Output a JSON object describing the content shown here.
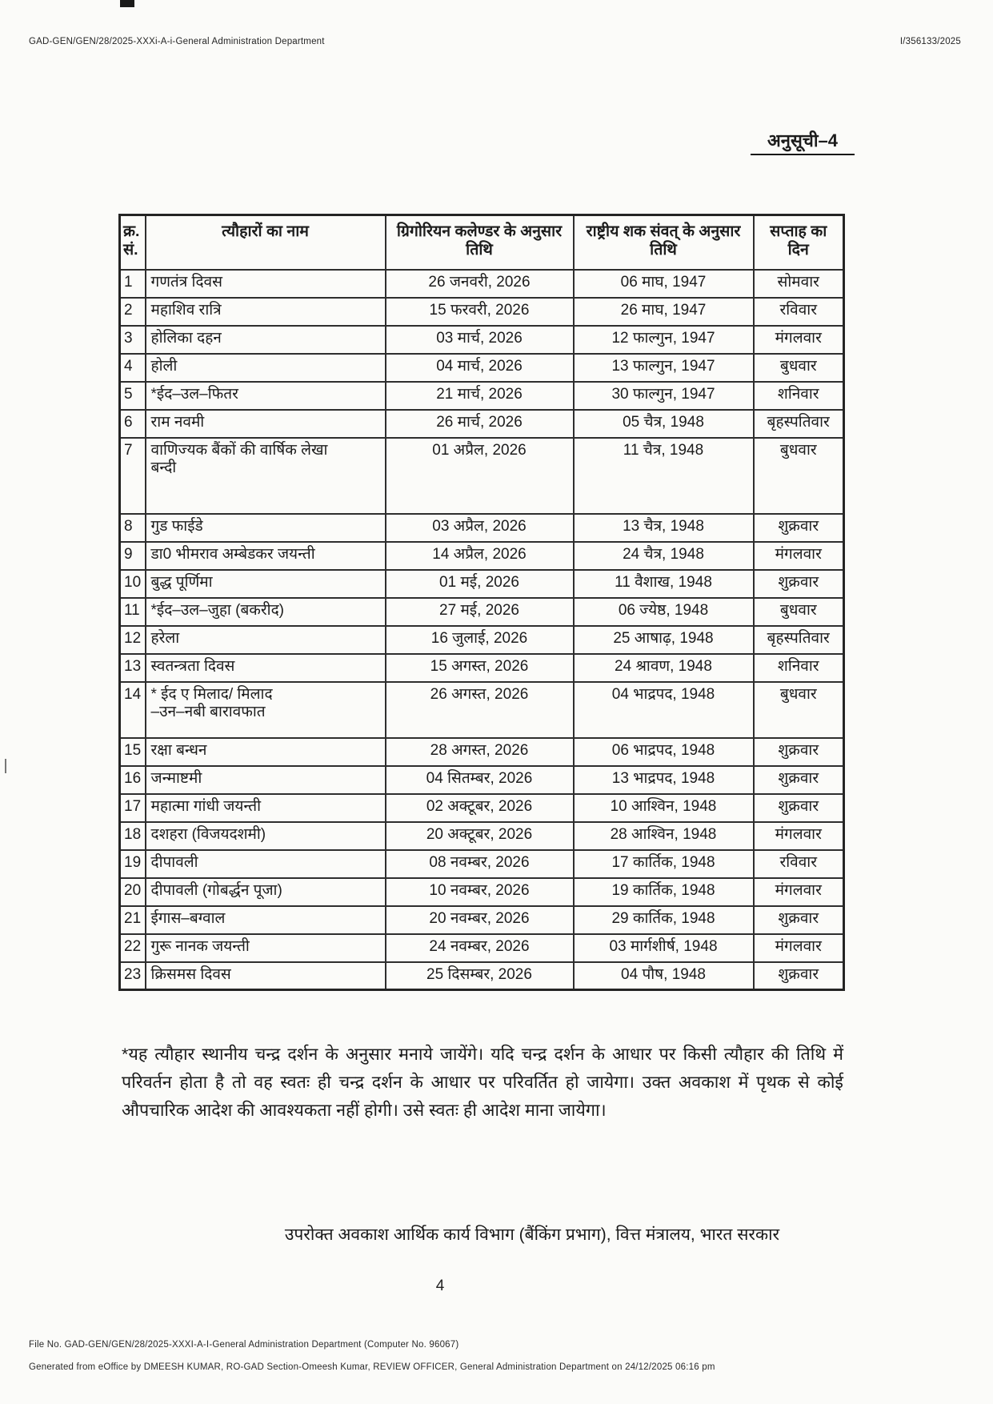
{
  "page": {
    "ref_number": "GAD-GEN/GEN/28/2025-XXXi-A-i-General Administration Department",
    "doc_id": "I/356133/2025",
    "title": "अनुसूची–4",
    "page_number": "4"
  },
  "table": {
    "columns": [
      "क्र.\nसं.",
      "त्यौहारों का नाम",
      "ग्रिगोरियन कलेण्डर के अनुसार तिथि",
      "राष्ट्रीय शक संवत् के अनुसार तिथि",
      "सप्ताह का दिन"
    ],
    "rows": [
      {
        "sn": "1",
        "name": "गणतंत्र दिवस",
        "gregorian_date": "26 जनवरी, 2026",
        "shaka_date": "06 माघ, 1947",
        "weekday": "सोमवार"
      },
      {
        "sn": "2",
        "name": "महाशिव रात्रि",
        "gregorian_date": "15 फरवरी, 2026",
        "shaka_date": "26 माघ, 1947",
        "weekday": "रविवार"
      },
      {
        "sn": "3",
        "name": "होलिका दहन",
        "gregorian_date": "03 मार्च, 2026",
        "shaka_date": "12 फाल्गुन, 1947",
        "weekday": "मंगलवार"
      },
      {
        "sn": "4",
        "name": "होली",
        "gregorian_date": "04 मार्च, 2026",
        "shaka_date": "13 फाल्गुन, 1947",
        "weekday": "बुधवार"
      },
      {
        "sn": "5",
        "name": "*ईद–उल–फितर",
        "gregorian_date": "21 मार्च, 2026",
        "shaka_date": "30 फाल्गुन, 1947",
        "weekday": "शनिवार"
      },
      {
        "sn": "6",
        "name": "राम नवमी",
        "gregorian_date": "26 मार्च, 2026",
        "shaka_date": "05 चैत्र, 1948",
        "weekday": "बृहस्पतिवार"
      },
      {
        "sn": "7",
        "name": "वाणिज्यक बैंकों की वार्षिक लेखा\nबन्दी",
        "gregorian_date": "01 अप्रैल, 2026",
        "shaka_date": "11 चैत्र, 1948",
        "weekday": "बुधवार"
      },
      {
        "sn": "8",
        "name": "गुड फाईडे",
        "gregorian_date": "03 अप्रैल, 2026",
        "shaka_date": "13 चैत्र, 1948",
        "weekday": "शुक्रवार"
      },
      {
        "sn": "9",
        "name": "डा0 भीमराव अम्बेडकर जयन्ती",
        "gregorian_date": "14 अप्रैल, 2026",
        "shaka_date": "24 चैत्र, 1948",
        "weekday": "मंगलवार"
      },
      {
        "sn": "10",
        "name": "बुद्ध पूर्णिमा",
        "gregorian_date": "01 मई, 2026",
        "shaka_date": "11 वैशाख, 1948",
        "weekday": "शुक्रवार"
      },
      {
        "sn": "11",
        "name": "*ईद–उल–जुहा (बकरीद)",
        "gregorian_date": "27 मई, 2026",
        "shaka_date": "06 ज्येष्ठ, 1948",
        "weekday": "बुधवार"
      },
      {
        "sn": "12",
        "name": "हरेला",
        "gregorian_date": "16 जुलाई, 2026",
        "shaka_date": "25 आषाढ़, 1948",
        "weekday": "बृहस्पतिवार"
      },
      {
        "sn": "13",
        "name": "स्वतन्त्रता दिवस",
        "gregorian_date": "15 अगस्त, 2026",
        "shaka_date": "24 श्रावण, 1948",
        "weekday": "शनिवार"
      },
      {
        "sn": "14",
        "name": "* ईद ए मिलाद/ मिलाद\n–उन–नबी बारावफात",
        "gregorian_date": "26 अगस्त, 2026",
        "shaka_date": "04 भाद्रपद, 1948",
        "weekday": "बुधवार"
      },
      {
        "sn": "15",
        "name": "रक्षा बन्धन",
        "gregorian_date": "28 अगस्त, 2026",
        "shaka_date": "06 भाद्रपद, 1948",
        "weekday": "शुक्रवार"
      },
      {
        "sn": "16",
        "name": "जन्माष्टमी",
        "gregorian_date": "04 सितम्बर, 2026",
        "shaka_date": "13 भाद्रपद, 1948",
        "weekday": "शुक्रवार"
      },
      {
        "sn": "17",
        "name": "महात्मा गांधी जयन्ती",
        "gregorian_date": "02 अक्टूबर, 2026",
        "shaka_date": "10 आश्विन, 1948",
        "weekday": "शुक्रवार"
      },
      {
        "sn": "18",
        "name": "दशहरा (विजयदशमी)",
        "gregorian_date": "20 अक्टूबर, 2026",
        "shaka_date": "28 आश्विन, 1948",
        "weekday": "मंगलवार"
      },
      {
        "sn": "19",
        "name": "दीपावली",
        "gregorian_date": "08 नवम्बर, 2026",
        "shaka_date": "17 कार्तिक, 1948",
        "weekday": "रविवार"
      },
      {
        "sn": "20",
        "name": "दीपावली (गोबर्द्धन पूजा)",
        "gregorian_date": "10 नवम्बर, 2026",
        "shaka_date": "19 कार्तिक, 1948",
        "weekday": "मंगलवार"
      },
      {
        "sn": "21",
        "name": "ईगास–बग्वाल",
        "gregorian_date": "20 नवम्बर, 2026",
        "shaka_date": "29 कार्तिक, 1948",
        "weekday": "शुक्रवार"
      },
      {
        "sn": "22",
        "name": "गुरू नानक जयन्ती",
        "gregorian_date": "24 नवम्बर, 2026",
        "shaka_date": "03 मार्गशीर्ष, 1948",
        "weekday": "मंगलवार"
      },
      {
        "sn": "23",
        "name": "क्रिसमस दिवस",
        "gregorian_date": "25 दिसम्बर, 2026",
        "shaka_date": "04 पौष, 1948",
        "weekday": "शुक्रवार"
      }
    ]
  },
  "footnote": "*यह त्यौहार स्थानीय चन्द्र दर्शन के अनुसार मनाये जायेंगे। यदि चन्द्र दर्शन के आधार पर किसी त्यौहार की तिथि में परिवर्तन होता है तो वह स्वतः ही चन्द्र दर्शन के आधार पर परिवर्तित हो जायेगा। उक्त अवकाश में पृथक से कोई औपचारिक आदेश की आवश्यकता नहीं होगी। उसे स्वतः ही आदेश माना जायेगा।",
  "source_line": "उपरोक्त अवकाश आर्थिक कार्य विभाग (बैंकिंग प्रभाग), वित्त मंत्रालय, भारत सरकार",
  "footer": {
    "file_no": "File No. GAD-GEN/GEN/28/2025-XXXI-A-I-General Administration Department (Computer No. 96067)",
    "generated": "Generated from eOffice by DMEESH KUMAR, RO-GAD Section-Omeesh Kumar, REVIEW OFFICER, General Administration Department on 24/12/2025 06:16 pm"
  }
}
